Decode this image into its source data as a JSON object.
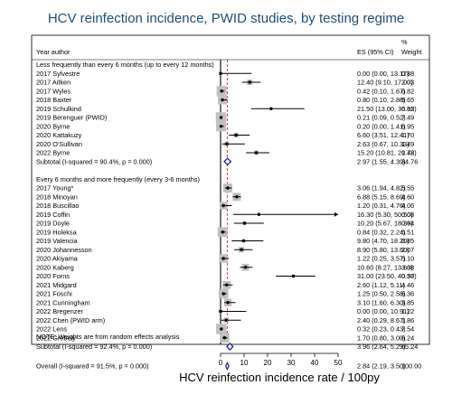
{
  "chart_data": {
    "type": "forest",
    "title": "HCV reinfection incidence, PWID studies, by testing regime",
    "xlabel": "HCV reinfection incidence rate / 100py",
    "xlim": [
      0,
      50
    ],
    "xticks": [
      0,
      10,
      20,
      30,
      40,
      50
    ],
    "overall_line_value": 2.84,
    "headers": {
      "col1": "Year  author",
      "col2": "ES (95% CI)",
      "col3_line1": "%",
      "col3_line2": "Weight"
    },
    "groups": [
      {
        "label": "Less frequently than every 6 months (up to every 12 months)",
        "studies": [
          {
            "label": "2017  Sylvestre",
            "es": 0.0,
            "lo": 0.0,
            "hi": 13.17,
            "text": "0.00 (0.00, 13.17)",
            "weight": "0.88"
          },
          {
            "label": "2017  Aitken",
            "es": 12.4,
            "lo": 9.1,
            "hi": 17.0,
            "text": "12.40 (9.10, 17.00)",
            "weight": "2.03"
          },
          {
            "label": "2017  Wyles",
            "es": 0.42,
            "lo": 0.1,
            "hi": 1.67,
            "text": "0.42 (0.10, 1.67)",
            "weight": "6.82"
          },
          {
            "label": "2018  Baxter",
            "es": 0.8,
            "lo": 0.1,
            "hi": 2.88,
            "text": "0.80 (0.10, 2.88)",
            "weight": "5.65"
          },
          {
            "label": "2019  Schulkind",
            "es": 21.5,
            "lo": 13.0,
            "hi": 35.65,
            "text": "21.50 (13.00, 35.65)",
            "weight": "0.32"
          },
          {
            "label": "2019  Berenguer (PWID)",
            "es": 0.21,
            "lo": 0.09,
            "hi": 0.52,
            "text": "0.21 (0.09, 0.52)",
            "weight": "7.49"
          },
          {
            "label": "2020  Byrne",
            "es": 0.2,
            "lo": 0.0,
            "hi": 1.41,
            "text": "0.20 (0.00, 1.41)",
            "weight": "6.95"
          },
          {
            "label": "2020  Kattakuzy",
            "es": 6.6,
            "lo": 3.51,
            "hi": 12.41,
            "text": "6.60 (3.51, 12.41)",
            "weight": "1.70"
          },
          {
            "label": "2020  O'Sullivan",
            "es": 2.63,
            "lo": 0.67,
            "hi": 10.33,
            "text": "2.63 (0.67, 10.33)",
            "weight": "1.49"
          },
          {
            "label": "2022  Byrne",
            "es": 15.2,
            "lo": 10.81,
            "hi": 20.78,
            "text": "15.20 (10.81, 20.78)",
            "weight": "1.42"
          }
        ],
        "subtotal": {
          "label": "Subtotal  (I-squared = 90.4%, p = 0.000)",
          "es": 2.97,
          "lo": 1.55,
          "hi": 4.39,
          "text": "2.97 (1.55, 4.39)",
          "weight": "34.76"
        }
      },
      {
        "label": "Every 6 months and more frequently (every 3-6 months)",
        "studies": [
          {
            "label": "2017  Young*",
            "es": 3.06,
            "lo": 1.94,
            "hi": 4.82,
            "text": "3.06 (1.94, 4.82)",
            "weight": "5.55"
          },
          {
            "label": "2018  Minoyan",
            "es": 6.88,
            "lo": 5.15,
            "hi": 8.69,
            "text": "6.88 (5.15, 8.69)",
            "weight": "4.60"
          },
          {
            "label": "2018  Buscillao",
            "es": 1.2,
            "lo": 0.31,
            "hi": 4.76,
            "text": "1.20 (0.31, 4.76)",
            "weight": "4.06"
          },
          {
            "label": "2019  Coffin",
            "es": 16.3,
            "lo": 5.3,
            "hi": 50.5,
            "text": "16.30 (5.30, 50.50)",
            "weight": "0.08"
          },
          {
            "label": "2019  Doyle",
            "es": 10.2,
            "lo": 5.67,
            "hi": 18.36,
            "text": "10.20 (5.67, 18.36)",
            "weight": "0.94"
          },
          {
            "label": "2019  Holeksa",
            "es": 0.84,
            "lo": 0.32,
            "hi": 2.24,
            "text": "0.84 (0.32, 2.24)",
            "weight": "6.51"
          },
          {
            "label": "2019  Valencia",
            "es": 9.8,
            "lo": 4.7,
            "hi": 18.2,
            "text": "9.80 (4.70, 18.20)",
            "weight": "0.85"
          },
          {
            "label": "2020  Johannesson",
            "es": 8.9,
            "lo": 5.8,
            "hi": 13.6,
            "text": "8.90 (5.80, 13.60)",
            "weight": "2.07"
          },
          {
            "label": "2020  Akiyama",
            "es": 1.22,
            "lo": 0.25,
            "hi": 3.57,
            "text": "1.22 (0.25, 3.57)",
            "weight": "5.10"
          },
          {
            "label": "2020  Kaberg",
            "es": 10.6,
            "lo": 8.27,
            "hi": 13.6,
            "text": "10.60 (8.27, 13.60)",
            "weight": "3.38"
          },
          {
            "label": "2020  Forns",
            "es": 31.0,
            "lo": 23.5,
            "hi": 40.3,
            "text": "31.00 (23.50, 40.30)",
            "weight": "0.57"
          },
          {
            "label": "2021  Midgard",
            "es": 2.6,
            "lo": 1.12,
            "hi": 5.11,
            "text": "2.60 (1.12, 5.11)",
            "weight": "4.46"
          },
          {
            "label": "2021  Foschi",
            "es": 1.25,
            "lo": 0.5,
            "hi": 2.58,
            "text": "1.25 (0.50, 2.58)",
            "weight": "6.36"
          },
          {
            "label": "2021  Cunningham",
            "es": 3.1,
            "lo": 1.6,
            "hi": 6.3,
            "text": "3.10 (1.60, 6.30)",
            "weight": "3.85"
          },
          {
            "label": "2022  Bregenzer",
            "es": 0.0,
            "lo": 0.0,
            "hi": 10.91,
            "text": "0.00 (0.00, 10.91)",
            "weight": "1.22"
          },
          {
            "label": "2022  Chen (PWID arm)",
            "es": 2.4,
            "lo": 0.29,
            "hi": 8.67,
            "text": "2.40 (0.29, 8.67)",
            "weight": "1.86"
          },
          {
            "label": "2022  Lens",
            "es": 0.32,
            "lo": 0.23,
            "hi": 0.43,
            "text": "0.32 (0.23, 0.43)",
            "weight": "7.54"
          },
          {
            "label": "2022  Grebely",
            "es": 1.7,
            "lo": 0.8,
            "hi": 3.0,
            "text": "1.70 (0.80, 3.00)",
            "weight": "6.24"
          }
        ],
        "subtotal": {
          "label": "Subtotal  (I-squared = 92.4%, p = 0.000)",
          "es": 3.96,
          "lo": 2.64,
          "hi": 5.29,
          "text": "3.96 (2.64, 5.29)",
          "weight": "65.24"
        }
      }
    ],
    "overall": {
      "label": "Overall  (I-squared = 91.5%, p = 0.000)",
      "es": 2.84,
      "lo": 2.19,
      "hi": 3.5,
      "text": "2.84 (2.19, 3.50)",
      "weight": "100.00"
    },
    "note": "NOTE: Weights are from random effects analysis",
    "colors": {
      "title": "#1f4e79",
      "point": "#000000",
      "weight_box": "#c0c0c0",
      "diamond": "#1f2a8a",
      "overall_line": "#cc3333",
      "frame": "#000000"
    }
  }
}
